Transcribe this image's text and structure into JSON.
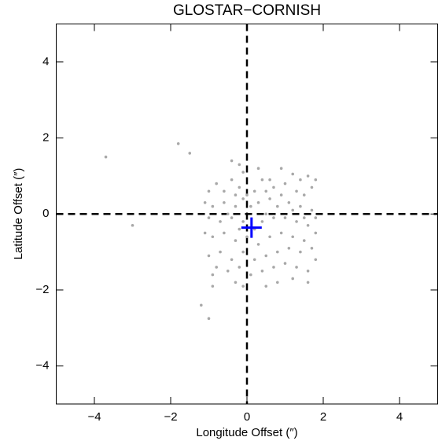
{
  "chart_data": {
    "type": "scatter",
    "title": "GLOSTAR−CORNISH",
    "x_label": "Longitude Offset (″)",
    "y_label": "Latitude Offset (″)",
    "xlim": [
      -5,
      5
    ],
    "ylim": [
      -5,
      5
    ],
    "xticks": [
      {
        "value": -4,
        "label": "−4"
      },
      {
        "value": -2,
        "label": "−2"
      },
      0,
      2,
      4
    ],
    "yticks": [
      {
        "value": -4,
        "label": "−4"
      },
      {
        "value": -2,
        "label": "−2"
      },
      0,
      2,
      4
    ],
    "reference_lines": true,
    "series": [
      {
        "color": "#a8a8a8",
        "marker": "dot",
        "x": [
          -3.7,
          -3.0,
          -1.8,
          -1.5,
          -1.2,
          -1.0,
          -0.9,
          -0.4,
          -0.2,
          -0.1,
          0.3,
          0.4,
          0.6,
          0.7,
          1.2,
          1.4,
          1.6,
          1.8,
          1.7,
          1.5,
          1.3,
          1.0,
          0.9,
          0.5,
          0.2,
          0.0,
          -0.2,
          -0.4,
          -0.6,
          -0.8,
          -1.0,
          -1.1,
          -0.9,
          -0.6,
          -0.3,
          -0.1,
          0.1,
          0.3,
          0.6,
          0.8,
          1.1,
          1.2,
          1.4,
          1.7,
          1.8,
          1.6,
          1.3,
          1.0,
          0.7,
          0.4,
          0.2,
          -0.1,
          -0.4,
          -0.7,
          -1.0,
          -1.1,
          -0.9,
          -0.6,
          -0.3,
          0.0,
          0.3,
          0.6,
          0.9,
          1.2,
          1.5,
          1.8,
          1.7,
          1.4,
          1.1,
          0.8,
          0.5,
          0.2,
          -0.1,
          -0.4,
          -0.7,
          -1.0,
          -0.8,
          -0.5,
          -0.2,
          0.1,
          0.4,
          0.7,
          1.0,
          1.3,
          1.6,
          1.8,
          1.6,
          1.2,
          0.8,
          0.5,
          -0.3,
          -0.1,
          -0.9,
          -0.5,
          0.5,
          -0.2,
          0.9,
          -0.3,
          1.5
        ],
        "y": [
          1.5,
          -0.3,
          1.85,
          1.6,
          -2.4,
          -2.75,
          -1.9,
          1.4,
          1.3,
          1.1,
          1.2,
          0.9,
          0.9,
          0.7,
          1.05,
          0.9,
          1.0,
          0.9,
          0.7,
          0.5,
          0.6,
          0.8,
          0.5,
          0.6,
          0.6,
          0.5,
          0.7,
          0.9,
          0.6,
          0.8,
          0.6,
          0.3,
          0.2,
          0.3,
          0.2,
          0.4,
          0.2,
          0.3,
          0.4,
          0.2,
          0.3,
          0.1,
          0.2,
          0.1,
          -0.1,
          -0.3,
          -0.2,
          -0.1,
          -0.1,
          -0.2,
          -0.4,
          -0.2,
          -0.1,
          -0.2,
          -0.1,
          -0.5,
          -0.6,
          -0.5,
          -0.7,
          -0.6,
          -0.8,
          -0.6,
          -0.5,
          -0.6,
          -0.7,
          -0.5,
          -0.9,
          -1.0,
          -0.9,
          -1.0,
          -1.1,
          -1.2,
          -1.0,
          -1.2,
          -1.0,
          -1.1,
          -1.4,
          -1.5,
          -1.4,
          -1.6,
          -1.5,
          -1.4,
          -1.3,
          -1.4,
          -1.5,
          -1.2,
          -1.8,
          -1.7,
          -1.8,
          -1.9,
          -1.8,
          -1.9,
          -1.6,
          0.0,
          0.0,
          -0.4,
          1.2,
          0.5,
          -0.1
        ]
      },
      {
        "color": "#0000ff",
        "marker": "plus",
        "x": [
          0.12
        ],
        "y": [
          -0.36
        ]
      }
    ]
  }
}
